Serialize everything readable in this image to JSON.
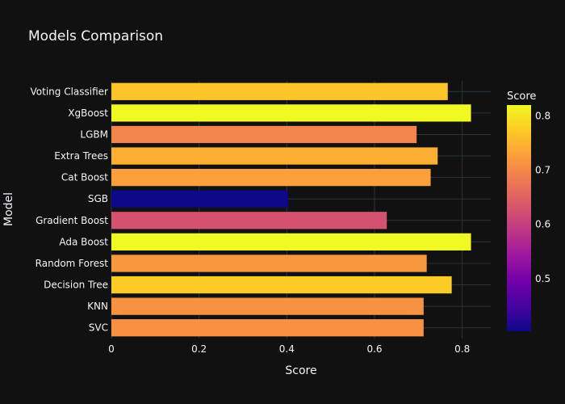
{
  "chart_data": {
    "type": "bar",
    "orientation": "horizontal",
    "title": "Models Comparison",
    "xlabel": "Score",
    "ylabel": "Model",
    "xlim": [
      0,
      0.865
    ],
    "x_ticks": [
      0,
      0.2,
      0.4,
      0.6,
      0.8
    ],
    "x_tick_labels": [
      "0",
      "0.2",
      "0.4",
      "0.6",
      "0.8"
    ],
    "grid": true,
    "categories": [
      "SVC",
      "KNN",
      "Decision Tree",
      "Random Forest",
      "Ada Boost",
      "Gradient Boost",
      "SGB",
      "Cat Boost",
      "Extra Trees",
      "LGBM",
      "XgBoost",
      "Voting Classifier"
    ],
    "values": [
      0.712,
      0.712,
      0.776,
      0.719,
      0.82,
      0.628,
      0.403,
      0.728,
      0.744,
      0.696,
      0.82,
      0.767
    ],
    "colorbar": {
      "title": "Score",
      "range": [
        0.403,
        0.82
      ],
      "ticks": [
        0.5,
        0.6,
        0.7,
        0.8
      ],
      "tick_labels": [
        "0.5",
        "0.6",
        "0.7",
        "0.8"
      ],
      "colorscale": [
        "#0d0887",
        "#46039f",
        "#7201a8",
        "#9c179e",
        "#bd3786",
        "#d8576b",
        "#ed7953",
        "#fb9f3a",
        "#fdca26",
        "#f0f921"
      ]
    },
    "legend_position": "right"
  },
  "colors": {
    "background": "#111111",
    "grid": "#283442",
    "text": "#f2f5fa"
  }
}
